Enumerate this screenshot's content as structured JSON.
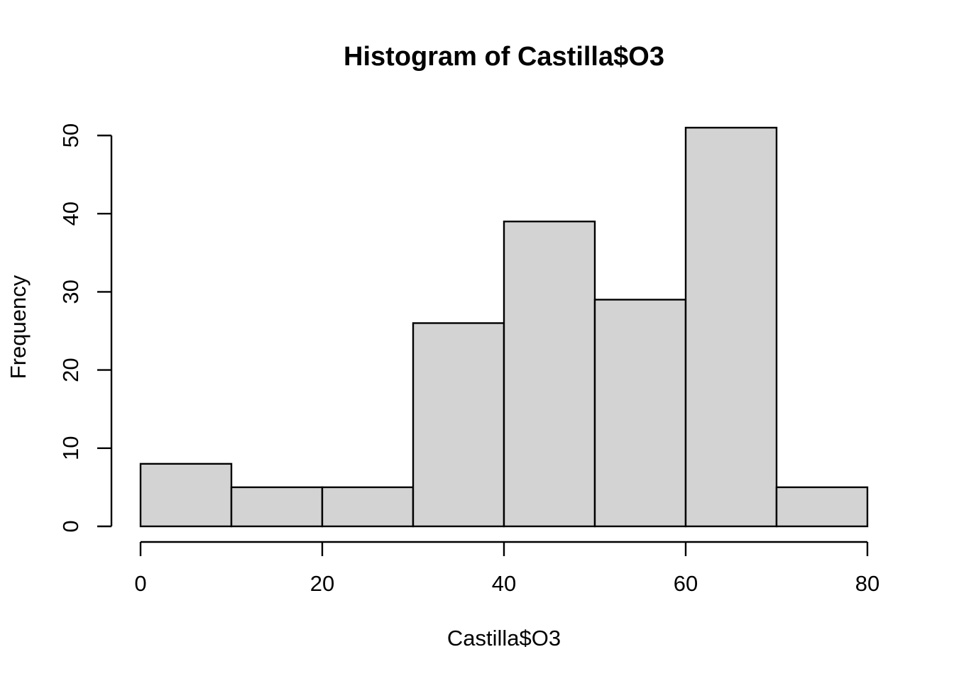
{
  "chart_data": {
    "type": "bar",
    "title": "Histogram of Castilla$O3",
    "xlabel": "Castilla$O3",
    "ylabel": "Frequency",
    "bins": [
      [
        0,
        10
      ],
      [
        10,
        20
      ],
      [
        20,
        30
      ],
      [
        30,
        40
      ],
      [
        40,
        50
      ],
      [
        50,
        60
      ],
      [
        60,
        70
      ],
      [
        70,
        80
      ]
    ],
    "values": [
      8,
      5,
      5,
      26,
      39,
      29,
      51,
      5
    ],
    "xlim": [
      0,
      80
    ],
    "ylim": [
      0,
      50
    ],
    "x_ticks": [
      0,
      20,
      40,
      60,
      80
    ],
    "x_tick_labels": [
      "0",
      "20",
      "40",
      "60",
      "80"
    ],
    "y_ticks": [
      0,
      10,
      20,
      30,
      40,
      50
    ],
    "y_tick_labels": [
      "0",
      "10",
      "20",
      "30",
      "40",
      "50"
    ],
    "bar_color": "#d3d3d3",
    "grid": false
  }
}
